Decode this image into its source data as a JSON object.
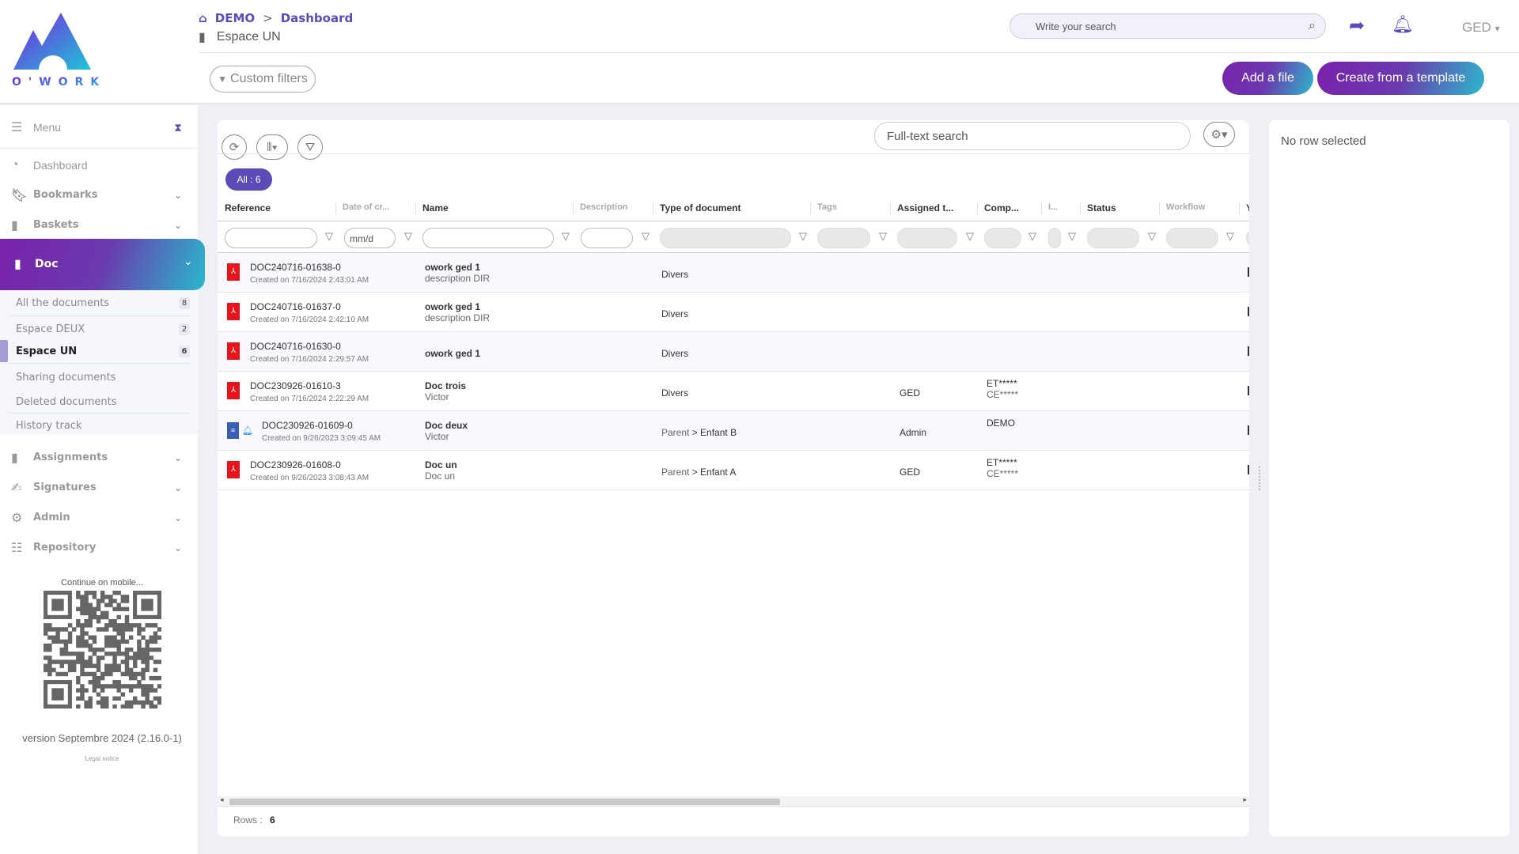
{
  "brand": {
    "logo_text": "O'WORK",
    "colors": {
      "accent": "#5b4bb7",
      "gradient_start": "#7a22ab",
      "gradient_end": "#2eb8cc"
    }
  },
  "breadcrumb": {
    "home": "DEMO",
    "separator": ">",
    "current": "Dashboard"
  },
  "space": {
    "title": "Espace UN"
  },
  "header": {
    "search_placeholder": "Write your search",
    "module": "GED",
    "module_caret": "▾"
  },
  "toolbar": {
    "custom_filters": "Custom filters",
    "add_file": "Add a file",
    "create_template": "Create from a template"
  },
  "sidebar": {
    "menu": "Menu",
    "items": [
      {
        "label": "Dashboard",
        "icon": "dashboard-icon"
      },
      {
        "label": "Bookmarks",
        "icon": "bookmark-icon"
      },
      {
        "label": "Baskets",
        "icon": "book-icon"
      },
      {
        "label": "Doc",
        "icon": "book-icon"
      },
      {
        "label": "Assignments",
        "icon": "book-icon"
      },
      {
        "label": "Signatures",
        "icon": "signature-icon"
      },
      {
        "label": "Admin",
        "icon": "gear-icon"
      },
      {
        "label": "Repository",
        "icon": "list-icon"
      }
    ],
    "doc_sub": [
      {
        "label": "All the documents",
        "count": "8"
      },
      {
        "label": "Espace DEUX",
        "count": "2"
      },
      {
        "label": "Espace UN",
        "count": "6"
      },
      {
        "label": "Sharing documents"
      },
      {
        "label": "Deleted documents"
      },
      {
        "label": "History track"
      }
    ],
    "mobile": "Continue on mobile...",
    "version": "version Septembre 2024 (2.16.0-1)",
    "legal": "Legal notice"
  },
  "grid": {
    "fulltext_placeholder": "Full-text search",
    "all_count": "All : 6",
    "date_placeholder": "mm/d",
    "columns": [
      "Reference",
      "Date of cr...",
      "Name",
      "Description",
      "Type of document",
      "Tags",
      "Assigned t...",
      "Comp...",
      "I...",
      "Status",
      "Workflow",
      "Y"
    ],
    "rows": [
      {
        "ref": "DOC240716-01638-0",
        "created": "Created on 7/16/2024 2:43:01 AM",
        "icon": "pdf",
        "name": "owork ged 1",
        "desc": "description DIR",
        "type_parent": "",
        "type": "Divers",
        "assigned": "",
        "comp": [
          "",
          ""
        ]
      },
      {
        "ref": "DOC240716-01637-0",
        "created": "Created on 7/16/2024 2:42:10 AM",
        "icon": "pdf",
        "name": "owork ged 1",
        "desc": "description DIR",
        "type_parent": "",
        "type": "Divers",
        "assigned": "",
        "comp": [
          "",
          ""
        ]
      },
      {
        "ref": "DOC240716-01630-0",
        "created": "Created on 7/16/2024 2:29:57 AM",
        "icon": "pdf",
        "name": "owork ged 1",
        "desc": "",
        "type_parent": "",
        "type": "Divers",
        "assigned": "",
        "comp": [
          "",
          ""
        ]
      },
      {
        "ref": "DOC230926-01610-3",
        "created": "Created on 7/16/2024 2:22:29 AM",
        "icon": "pdf",
        "name": "Doc trois",
        "desc": "Victor",
        "type_parent": "",
        "type": "Divers",
        "assigned": "GED",
        "comp": [
          "ET*****",
          "CE*****"
        ]
      },
      {
        "ref": "DOC230926-01609-0",
        "created": "Created on 9/26/2023 3:09:45 AM",
        "icon": "form",
        "name": "Doc deux",
        "desc": "Victor",
        "type_parent": "Parent",
        "type": "Enfant B",
        "assigned": "Admin",
        "comp": [
          "DEMO",
          ""
        ]
      },
      {
        "ref": "DOC230926-01608-0",
        "created": "Created on 9/26/2023 3:08:43 AM",
        "icon": "pdf",
        "name": "Doc un",
        "desc": "Doc un",
        "type_parent": "Parent",
        "type": "Enfant A",
        "assigned": "GED",
        "comp": [
          "ET*****",
          "CE*****"
        ]
      }
    ],
    "rows_label": "Rows :",
    "rows_count": "6"
  },
  "detail": {
    "empty": "No row selected"
  }
}
